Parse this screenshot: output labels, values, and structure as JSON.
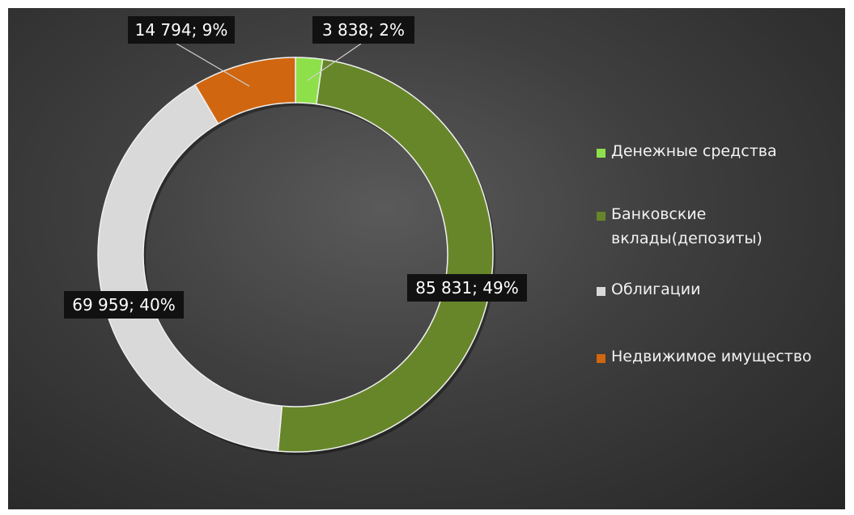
{
  "chart_data": {
    "type": "donut",
    "title": "",
    "series": [
      {
        "name": "Денежные средства",
        "value": 3838,
        "percent": 2,
        "label": "3 838; 2%",
        "color": "#8ee04a"
      },
      {
        "name": "Банковские вклады(депозиты)",
        "value": 85831,
        "percent": 49,
        "label": "85 831; 49%",
        "color": "#67862a"
      },
      {
        "name": "Облигации",
        "value": 69959,
        "percent": 40,
        "label": "69 959; 40%",
        "color": "#d9d9d9"
      },
      {
        "name": "Недвижимое имущество",
        "value": 14794,
        "percent": 9,
        "label": "14 794; 9%",
        "color": "#d0660f"
      }
    ],
    "legend_position": "right",
    "legend": [
      {
        "text": "Денежные средства",
        "color": "#8ee04a"
      },
      {
        "text": "Банковские вклады(депозиты)",
        "color": "#67862a"
      },
      {
        "text": "Облигации",
        "color": "#d9d9d9"
      },
      {
        "text": "Недвижимое имущество",
        "color": "#d0660f"
      }
    ]
  }
}
